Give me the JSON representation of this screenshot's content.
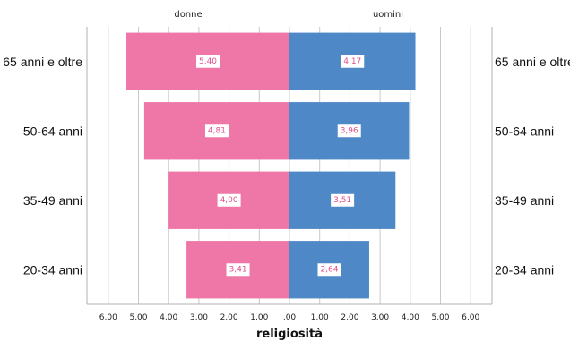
{
  "chart_data": {
    "type": "bar",
    "orientation": "horizontal-butterfly",
    "categories": [
      "65 anni e oltre",
      "50-64 anni",
      "35-49 anni",
      "20-34 anni"
    ],
    "series": [
      {
        "name": "donne",
        "side": "left",
        "color": "#ee77a8",
        "values": [
          5.4,
          4.81,
          4.0,
          3.41
        ],
        "labels": [
          "5,40",
          "4,81",
          "4,00",
          "3,41"
        ]
      },
      {
        "name": "uomini",
        "side": "right",
        "color": "#4f88c6",
        "values": [
          4.17,
          3.96,
          3.51,
          2.64
        ],
        "labels": [
          "4,17",
          "3,96",
          "3,51",
          "2,64"
        ]
      }
    ],
    "xlim": [
      -6,
      6
    ],
    "x_ticks": [
      -6,
      -5,
      -4,
      -3,
      -2,
      -1,
      0,
      1,
      2,
      3,
      4,
      5,
      6
    ],
    "x_tick_labels": [
      "6,00",
      "5,00",
      "4,00",
      "3,00",
      "2,00",
      "1,00",
      ",00",
      "1,00",
      "2,00",
      "3,00",
      "4,00",
      "5,00",
      "6,00"
    ],
    "xlabel": "religiosità",
    "ylabel": "",
    "grid": true,
    "data_label_color": "#e0508f"
  }
}
